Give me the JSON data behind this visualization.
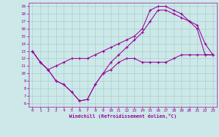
{
  "title": "",
  "xlabel": "Windchill (Refroidissement éolien,°C)",
  "bg_color": "#cce8e8",
  "line_color": "#990099",
  "grid_color": "#aacccc",
  "text_color": "#990099",
  "xlim": [
    -0.5,
    23.5
  ],
  "ylim": [
    5.5,
    19.5
  ],
  "xticks": [
    0,
    1,
    2,
    3,
    4,
    5,
    6,
    7,
    8,
    9,
    10,
    11,
    12,
    13,
    14,
    15,
    16,
    17,
    18,
    19,
    20,
    21,
    22,
    23
  ],
  "yticks": [
    6,
    7,
    8,
    9,
    10,
    11,
    12,
    13,
    14,
    15,
    16,
    17,
    18,
    19
  ],
  "line1_x": [
    0,
    1,
    2,
    3,
    4,
    5,
    6,
    7,
    8,
    9,
    10,
    11,
    12,
    13,
    14,
    15,
    16,
    17,
    18,
    19,
    20,
    21,
    22,
    23
  ],
  "line1_y": [
    13,
    11.5,
    10.5,
    9.0,
    8.5,
    7.5,
    6.3,
    6.5,
    8.5,
    10.0,
    10.5,
    11.5,
    12.0,
    12.0,
    11.5,
    11.5,
    11.5,
    11.5,
    12.0,
    12.5,
    12.5,
    12.5,
    12.5,
    12.5
  ],
  "line2_x": [
    0,
    1,
    2,
    3,
    4,
    5,
    6,
    7,
    8,
    9,
    10,
    11,
    12,
    13,
    14,
    15,
    16,
    17,
    18,
    19,
    20,
    21,
    22,
    23
  ],
  "line2_y": [
    13,
    11.5,
    10.5,
    9.0,
    8.5,
    7.5,
    6.3,
    6.5,
    8.5,
    10.0,
    11.5,
    12.5,
    13.5,
    14.5,
    15.5,
    17.0,
    18.5,
    18.5,
    18.0,
    17.5,
    17.0,
    16.0,
    12.5,
    12.5
  ],
  "line3_x": [
    0,
    1,
    2,
    3,
    4,
    5,
    6,
    7,
    8,
    9,
    10,
    11,
    12,
    13,
    14,
    15,
    16,
    17,
    18,
    19,
    20,
    21,
    22,
    23
  ],
  "line3_y": [
    13,
    11.5,
    10.5,
    11.0,
    11.5,
    12.0,
    12.0,
    12.0,
    12.5,
    13.0,
    13.5,
    14.0,
    14.5,
    15.0,
    16.0,
    18.5,
    19.0,
    19.0,
    18.5,
    18.0,
    17.0,
    16.5,
    14.0,
    12.5
  ]
}
